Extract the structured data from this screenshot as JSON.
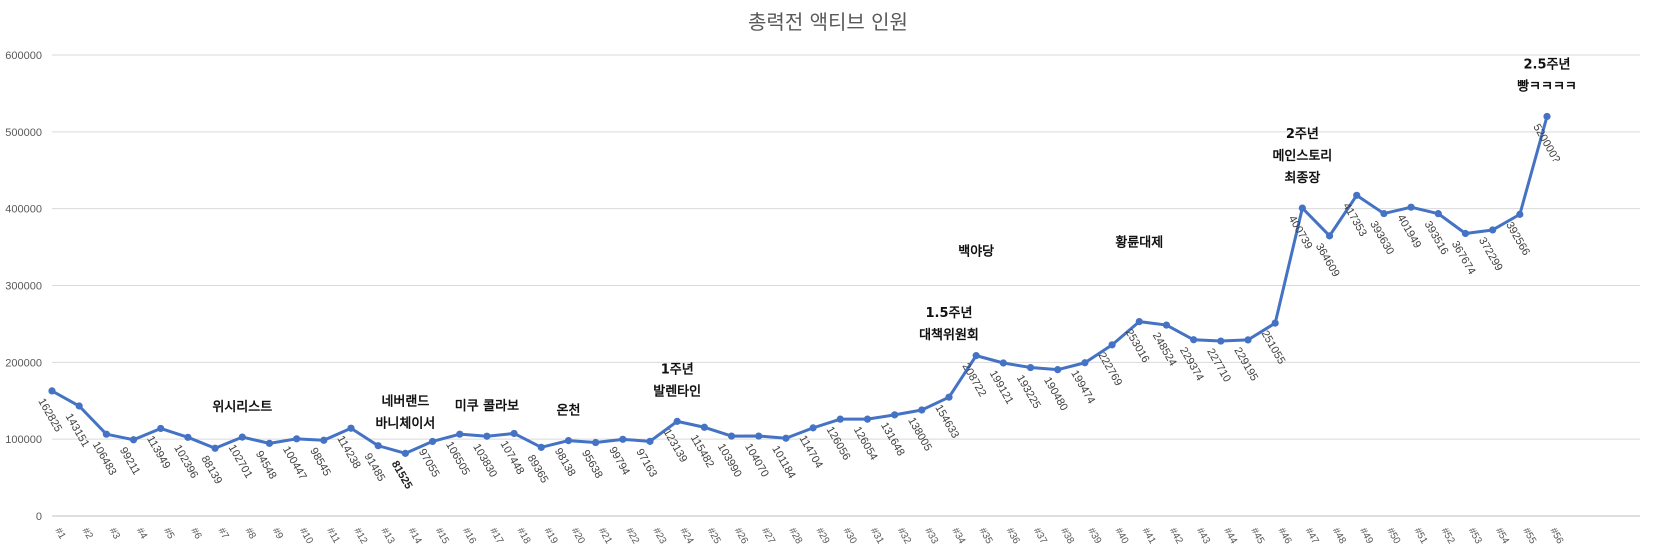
{
  "chart_data": {
    "type": "line",
    "title": "총력전 액티브 인원",
    "xlabel": "",
    "ylabel": "",
    "ylim": [
      0,
      600000
    ],
    "yticks": [
      0,
      100000,
      200000,
      300000,
      400000,
      500000,
      600000
    ],
    "ytick_labels": [
      "0",
      "100000",
      "200000",
      "300000",
      "400000",
      "500000",
      "600000"
    ],
    "grid": true,
    "legend": "none",
    "color": "#4472c4",
    "categories": [
      "#1",
      "#2",
      "#3",
      "#4",
      "#5",
      "#6",
      "#7",
      "#8",
      "#9",
      "#10",
      "#11",
      "#12",
      "#13",
      "#14",
      "#15",
      "#16",
      "#17",
      "#18",
      "#19",
      "#20",
      "#21",
      "#22",
      "#23",
      "#24",
      "#25",
      "#26",
      "#27",
      "#28",
      "#29",
      "#30",
      "#31",
      "#32",
      "#33",
      "#34",
      "#35",
      "#36",
      "#37",
      "#38",
      "#39",
      "#40",
      "#41",
      "#42",
      "#43",
      "#44",
      "#45",
      "#46",
      "#47",
      "#48",
      "#49",
      "#50",
      "#51",
      "#52",
      "#53",
      "#54",
      "#55",
      "#56"
    ],
    "series": [
      {
        "name": "액티브 인원",
        "values": [
          162825,
          143151,
          106483,
          99211,
          113949,
          102396,
          88139,
          102701,
          94548,
          100447,
          98545,
          114238,
          91485,
          81525,
          97055,
          106505,
          103830,
          107448,
          89365,
          98138,
          95638,
          99794,
          97163,
          123139,
          115482,
          103990,
          104070,
          101184,
          114704,
          126056,
          126054,
          131648,
          138005,
          154633,
          208722,
          199121,
          193225,
          190480,
          199474,
          222769,
          253016,
          248524,
          229374,
          227710,
          229195,
          251055,
          400739,
          364609,
          417353,
          393630,
          401949,
          393516,
          367674,
          372299,
          392566,
          520000
        ],
        "labels": [
          "162825",
          "143151",
          "106483",
          "99211",
          "113949",
          "102396",
          "88139",
          "102701",
          "94548",
          "100447",
          "98545",
          "114238",
          "91485",
          "81525",
          "97055",
          "106505",
          "103830",
          "107448",
          "89365",
          "98138",
          "95638",
          "99794",
          "97163",
          "123139",
          "115482",
          "103990",
          "104070",
          "101184",
          "114704",
          "126056",
          "126054",
          "131648",
          "138005",
          "154633",
          "208722",
          "199121",
          "193225",
          "190480",
          "199474",
          "222769",
          "253016",
          "248524",
          "229374",
          "227710",
          "229195",
          "251055",
          "400739",
          "364609",
          "417353",
          "393630",
          "401949",
          "393516",
          "367674",
          "372299",
          "392566",
          "520000?"
        ]
      }
    ],
    "bold_labels": [
      "#14"
    ],
    "annotations": [
      {
        "category": "#8",
        "lines": [
          "위시리스트"
        ]
      },
      {
        "category": "#14",
        "lines": [
          "네버랜드",
          "바니체이서"
        ]
      },
      {
        "category": "#17",
        "lines": [
          "미쿠 콜라보"
        ]
      },
      {
        "category": "#20",
        "lines": [
          "온천"
        ]
      },
      {
        "category": "#24",
        "lines": [
          "1주년",
          "발렌타인"
        ]
      },
      {
        "category": "#35",
        "lines": [
          "백야당"
        ]
      },
      {
        "category": "#34",
        "lines": [
          "1.5주년",
          "대책위원회"
        ]
      },
      {
        "category": "#41",
        "lines": [
          "황륜대제"
        ]
      },
      {
        "category": "#47",
        "lines": [
          "2주년",
          "메인스토리",
          "최종장"
        ]
      },
      {
        "category": "#56",
        "lines": [
          "2.5주년",
          "빵ㅋㅋㅋㅋ"
        ]
      }
    ]
  }
}
